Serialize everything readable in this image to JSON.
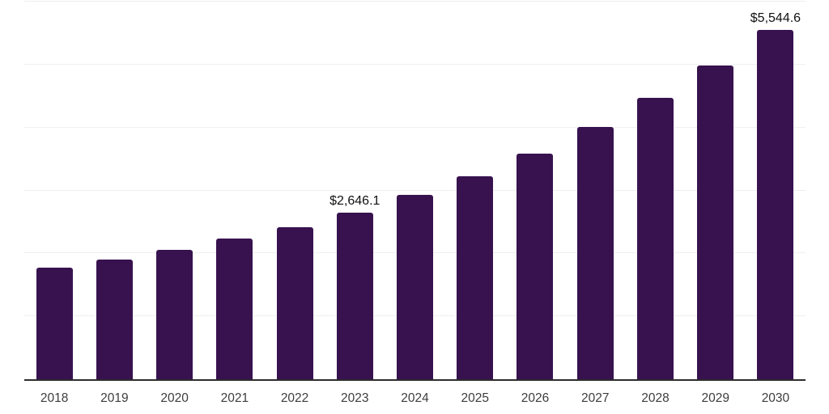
{
  "chart_data": {
    "type": "bar",
    "title": "",
    "xlabel": "",
    "ylabel": "",
    "categories": [
      "2018",
      "2019",
      "2020",
      "2021",
      "2022",
      "2023",
      "2024",
      "2025",
      "2026",
      "2027",
      "2028",
      "2029",
      "2030"
    ],
    "values": [
      1775,
      1905,
      2055,
      2230,
      2415,
      2646.1,
      2930,
      3230,
      3590,
      4010,
      4470,
      4980,
      5544.6
    ],
    "value_labels": [
      null,
      null,
      null,
      null,
      null,
      "$2,646.1",
      null,
      null,
      null,
      null,
      null,
      null,
      "$5,544.6"
    ],
    "ylim": [
      0,
      6000
    ],
    "gridline_interval": 1000,
    "grid": "horizontal",
    "legend": "none",
    "y_tick_labels_visible": false,
    "colors": {
      "bar": "#38124f",
      "axis": "#2d2d2d",
      "gridline": "#efefef",
      "value_label": "#111111",
      "tick_label": "#3d3d3d",
      "background": "#ffffff"
    }
  }
}
